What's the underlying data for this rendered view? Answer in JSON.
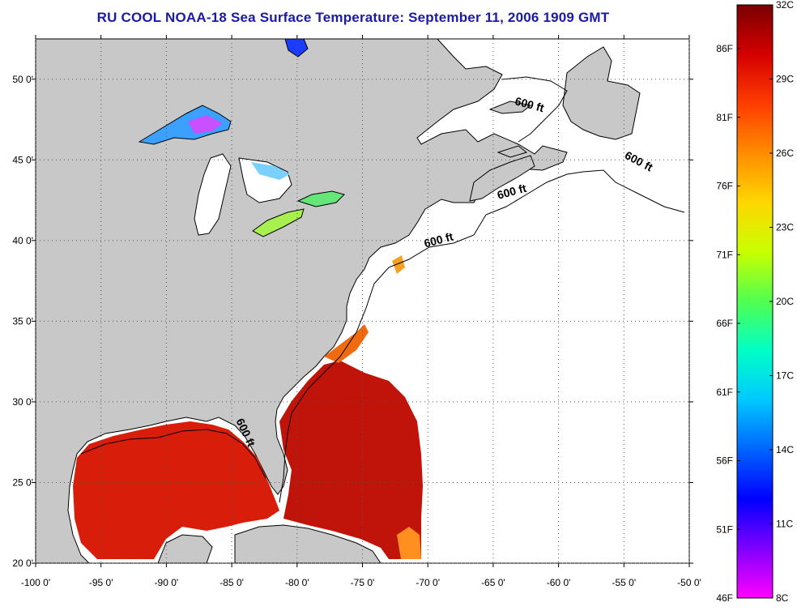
{
  "title": "RU COOL  NOAA-18  Sea Surface Temperature:  September 11, 2006 1909 GMT",
  "map": {
    "lon_range": [
      -100,
      -50
    ],
    "lat_range": [
      20,
      52.5
    ],
    "x_ticks": [
      {
        "lon": -100,
        "label": "-100 0'"
      },
      {
        "lon": -95,
        "label": "-95 0'"
      },
      {
        "lon": -90,
        "label": "-90 0'"
      },
      {
        "lon": -85,
        "label": "-85 0'"
      },
      {
        "lon": -80,
        "label": "-80 0'"
      },
      {
        "lon": -75,
        "label": "-75 0'"
      },
      {
        "lon": -70,
        "label": "-70 0'"
      },
      {
        "lon": -65,
        "label": "-65 0'"
      },
      {
        "lon": -60,
        "label": "-60 0'"
      },
      {
        "lon": -55,
        "label": "-55 0'"
      },
      {
        "lon": -50,
        "label": "-50 0'"
      }
    ],
    "y_ticks": [
      {
        "lat": 20,
        "label": "20 0'"
      },
      {
        "lat": 25,
        "label": "25 0'"
      },
      {
        "lat": 30,
        "label": "30 0'"
      },
      {
        "lat": 35,
        "label": "35 0'"
      },
      {
        "lat": 40,
        "label": "40 0'"
      },
      {
        "lat": 45,
        "label": "45 0'"
      },
      {
        "lat": 50,
        "label": "50 0'"
      }
    ],
    "contour_labels": [
      {
        "text": "600 ft",
        "lon": -62.3,
        "lat": 48.2,
        "angle": 15
      },
      {
        "text": "600 ft",
        "lon": -54,
        "lat": 44.7,
        "angle": 28
      },
      {
        "text": "600 ft",
        "lon": -63.5,
        "lat": 42.8,
        "angle": -15
      },
      {
        "text": "600 ft",
        "lon": -69.1,
        "lat": 39.8,
        "angle": -15
      },
      {
        "text": "600 ft",
        "lon": -84.2,
        "lat": 28.0,
        "angle": 65
      }
    ]
  },
  "colorbar": {
    "left_labels": [
      "86F",
      "81F",
      "76F",
      "71F",
      "66F",
      "61F",
      "56F",
      "51F",
      "46F"
    ],
    "right_labels": [
      "32C",
      "29C",
      "26C",
      "23C",
      "20C",
      "17C",
      "14C",
      "11C",
      "8C"
    ],
    "colors": [
      "#7a0000",
      "#d40000",
      "#ff3c00",
      "#ff8c00",
      "#ffd700",
      "#c8ff00",
      "#50ff50",
      "#00ffc8",
      "#00c8ff",
      "#0064ff",
      "#0000ff",
      "#8000ff",
      "#ff00ff"
    ]
  },
  "colors": {
    "land": "#c8c8c8",
    "ocean_no_data": "#ffffff",
    "sst_warm": "#d81e0a",
    "sst_hot": "#a00000",
    "lake_cool": "#3ca0ff"
  }
}
